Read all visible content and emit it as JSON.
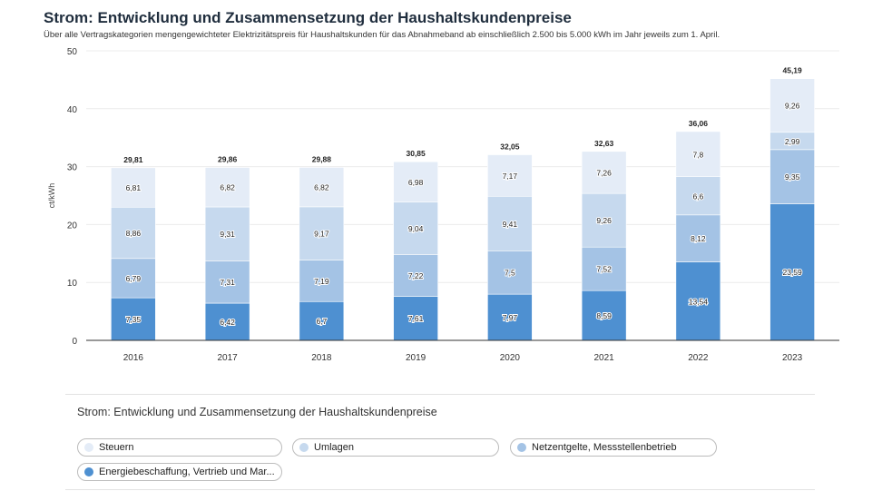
{
  "header": {
    "title": "Strom: Entwicklung und Zusammensetzung der Haushaltskundenpreise",
    "subtitle": "Über alle Vertragskategorien mengengewichteter Elektrizitätspreis für Haushaltskunden für das Abnahmeband ab einschließlich 2.500 bis 5.000 kWh im Jahr jeweils zum 1. April."
  },
  "legend": {
    "title": "Strom: Entwicklung und Zusammensetzung der Haushaltskundenpreise",
    "items": [
      {
        "label": "Steuern",
        "color": "#e4ecf7"
      },
      {
        "label": "Umlagen",
        "color": "#c6d9ee"
      },
      {
        "label": "Netzentgelte, Messstellenbetrieb",
        "color": "#a4c3e5"
      },
      {
        "label": "Energiebeschaffung, Vertrieb und Mar...",
        "color": "#4e90d1"
      }
    ]
  },
  "chart_data": {
    "type": "bar",
    "stacked": true,
    "ylabel": "ct/kWh",
    "ylim": [
      0,
      50
    ],
    "yticks": [
      0,
      10,
      20,
      30,
      40,
      50
    ],
    "categories": [
      "2016",
      "2017",
      "2018",
      "2019",
      "2020",
      "2021",
      "2022",
      "2023"
    ],
    "series": [
      {
        "name": "Energiebeschaffung, Vertrieb und Mar...",
        "color": "#4e90d1",
        "values": [
          7.35,
          6.42,
          6.7,
          7.61,
          7.97,
          8.59,
          13.54,
          23.59
        ],
        "labels": [
          "7,35",
          "6,42",
          "6,7",
          "7,61",
          "7,97",
          "8,59",
          "13,54",
          "23,59"
        ]
      },
      {
        "name": "Netzentgelte, Messstellenbetrieb",
        "color": "#a4c3e5",
        "values": [
          6.79,
          7.31,
          7.19,
          7.22,
          7.5,
          7.52,
          8.12,
          9.35
        ],
        "labels": [
          "6,79",
          "7,31",
          "7,19",
          "7,22",
          "7,5",
          "7,52",
          "8,12",
          "9,35"
        ]
      },
      {
        "name": "Umlagen",
        "color": "#c6d9ee",
        "values": [
          8.86,
          9.31,
          9.17,
          9.04,
          9.41,
          9.26,
          6.6,
          2.99
        ],
        "labels": [
          "8,86",
          "9,31",
          "9,17",
          "9,04",
          "9,41",
          "9,26",
          "6,6",
          "2,99"
        ]
      },
      {
        "name": "Steuern",
        "color": "#e4ecf7",
        "values": [
          6.81,
          6.82,
          6.82,
          6.98,
          7.17,
          7.26,
          7.8,
          9.26
        ],
        "labels": [
          "6,81",
          "6,82",
          "6,82",
          "6,98",
          "7,17",
          "7,26",
          "7,8",
          "9,26"
        ]
      }
    ],
    "totals": [
      29.81,
      29.86,
      29.88,
      30.85,
      32.05,
      32.63,
      36.06,
      45.19
    ],
    "total_labels": [
      "29,81",
      "29,86",
      "29,88",
      "30,85",
      "32,05",
      "32,63",
      "36,06",
      "45,19"
    ]
  }
}
